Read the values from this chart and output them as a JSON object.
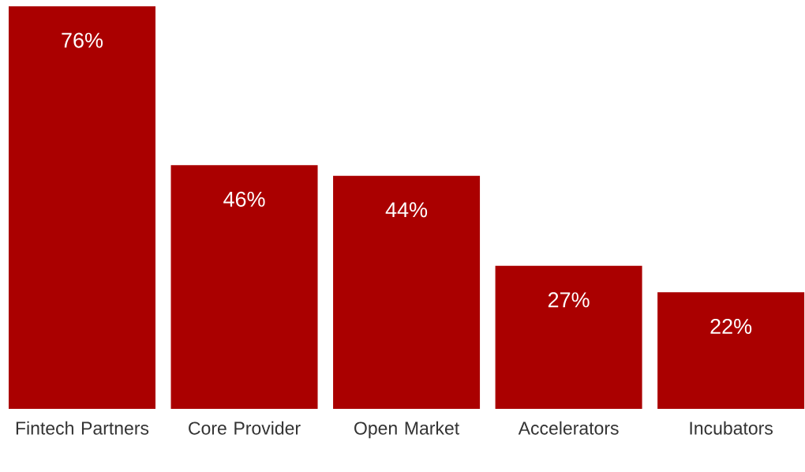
{
  "chart_data": {
    "type": "bar",
    "categories": [
      "Fintech Partners",
      "Core Provider",
      "Open Market",
      "Accelerators",
      "Incubators"
    ],
    "values": [
      76,
      46,
      44,
      27,
      22
    ],
    "value_labels": [
      "76%",
      "46%",
      "44%",
      "27%",
      "22%"
    ],
    "color": "#aa0000"
  }
}
